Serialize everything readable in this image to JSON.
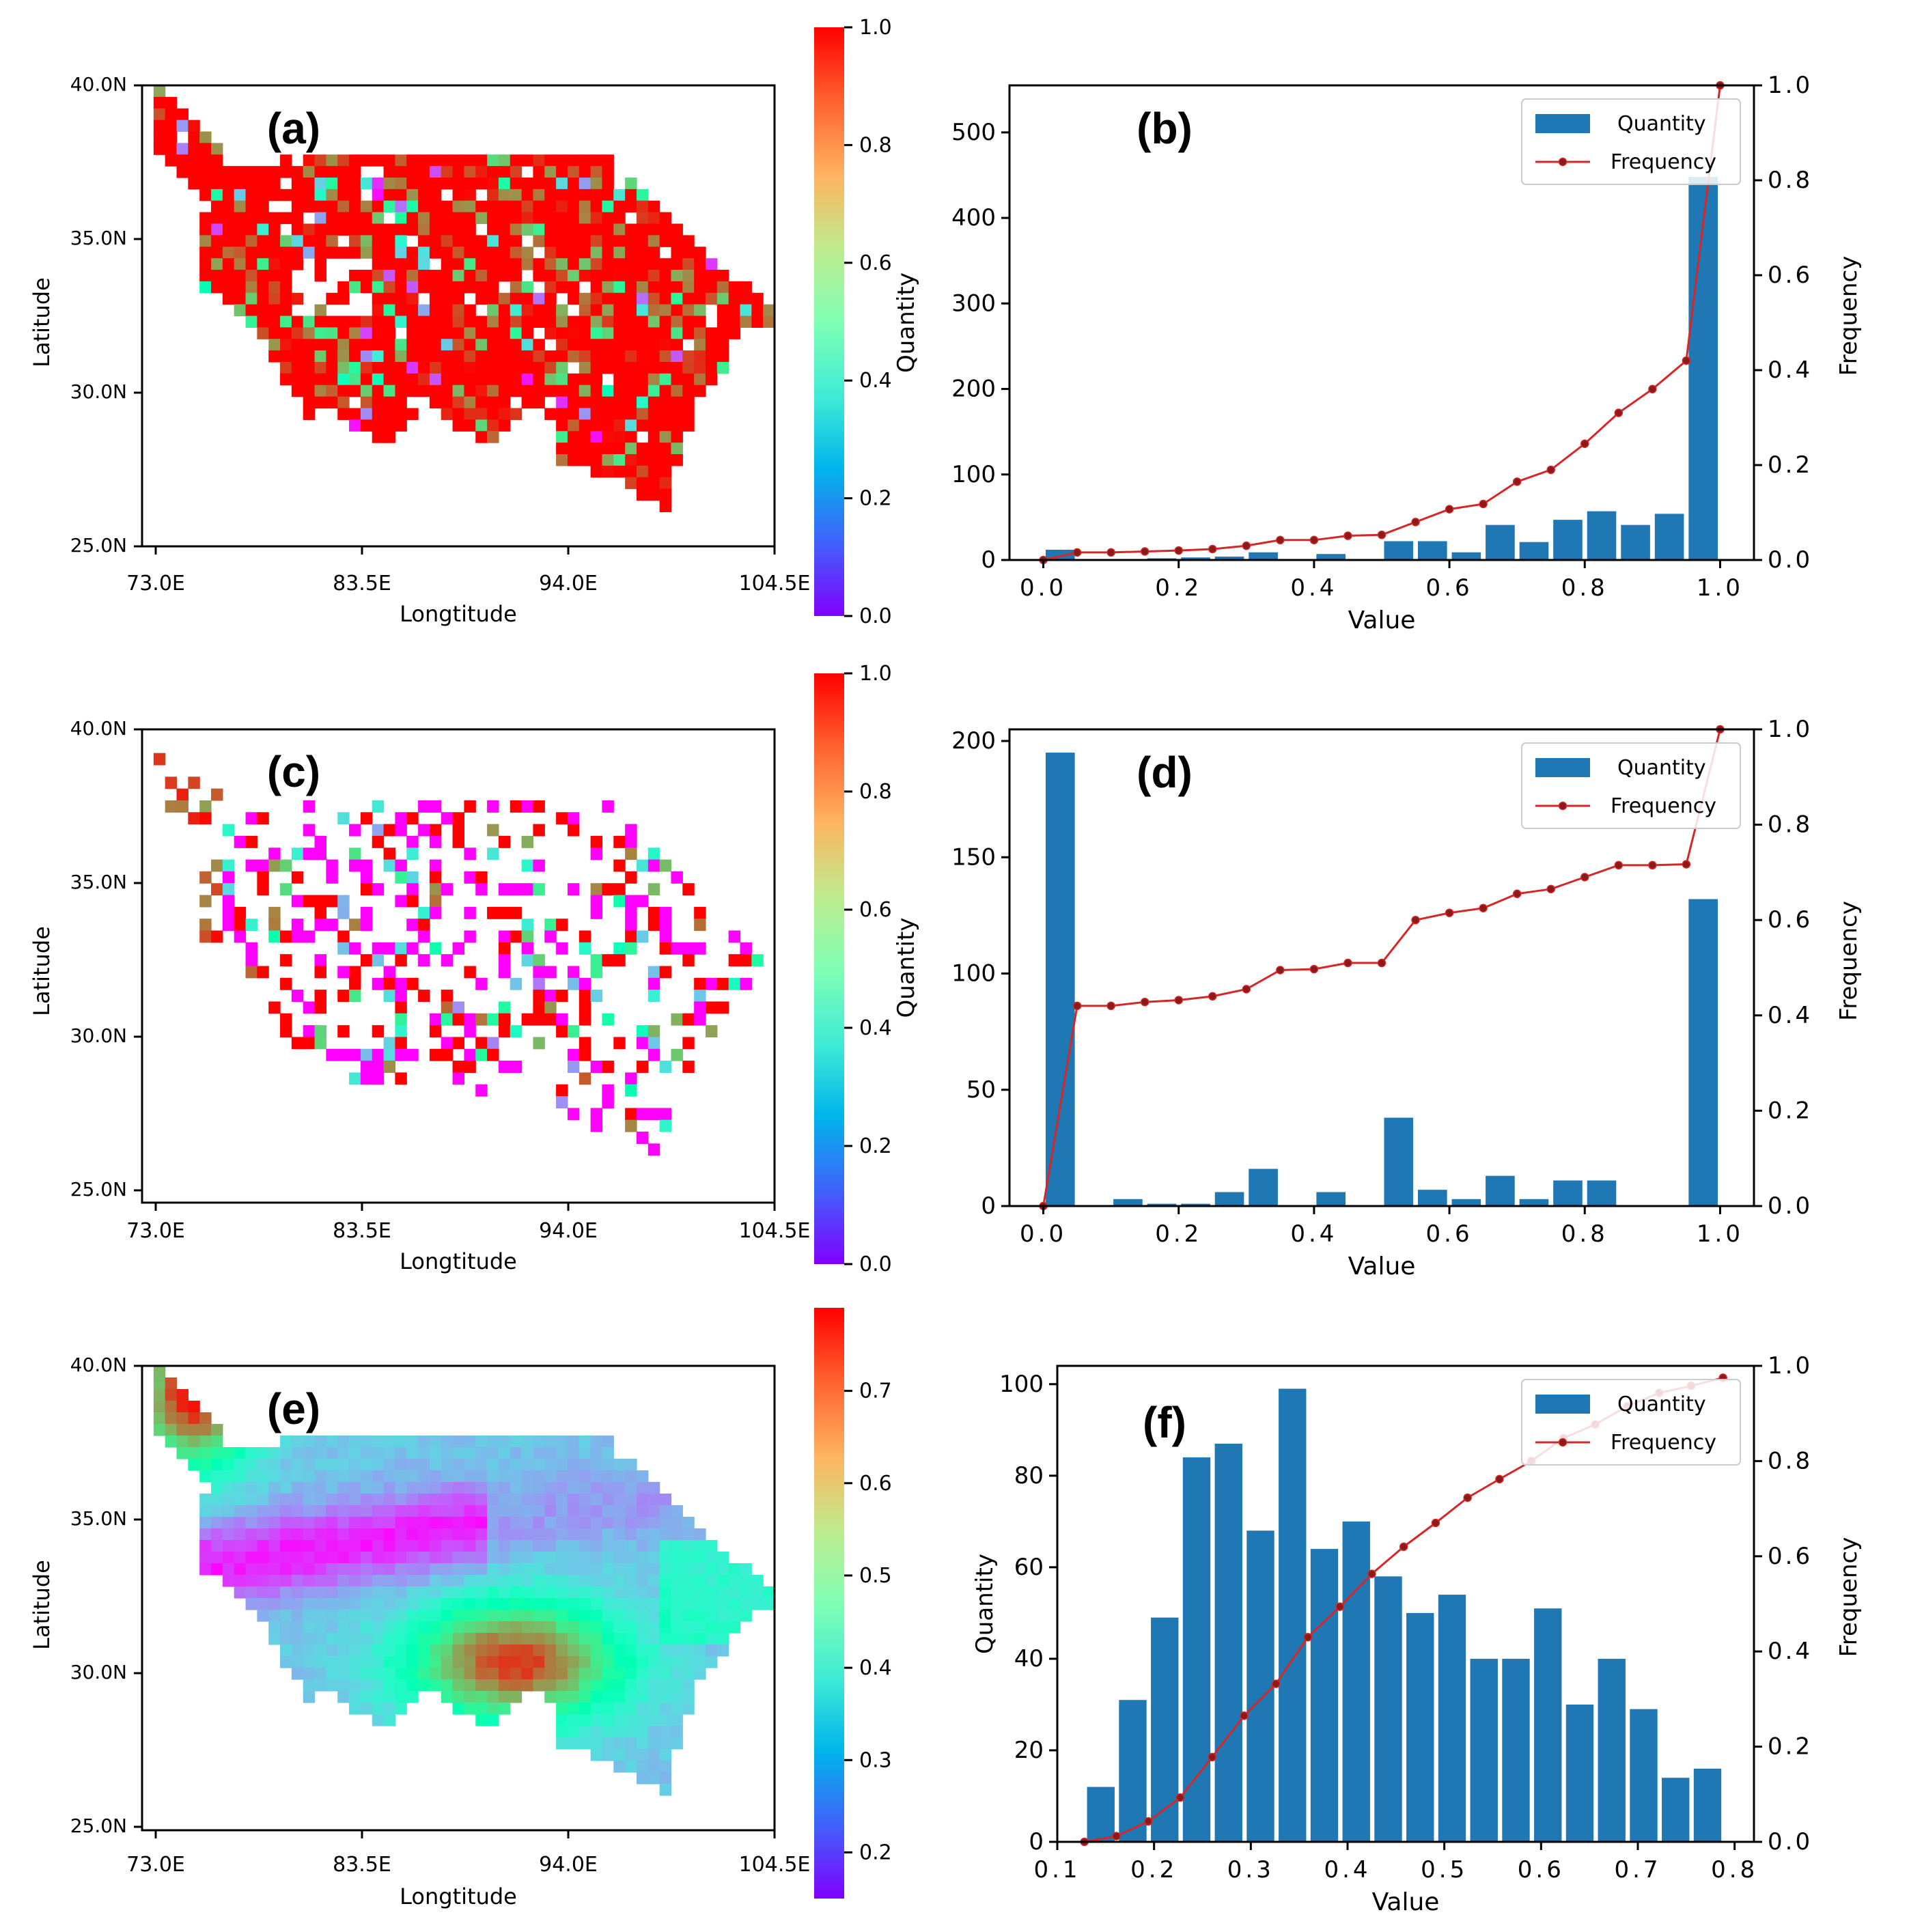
{
  "figure": {
    "map_panels": [
      {
        "id": "a",
        "panel_label": "(a)",
        "xlabel": "Longtitude",
        "ylabel": "Latitude",
        "xticks": [
          "73.0E",
          "83.5E",
          "94.0E",
          "104.5E"
        ],
        "yticks": [
          "40.0N",
          "35.0N",
          "30.0N",
          "25.0N"
        ],
        "colorbar_range": [
          0.0,
          1.0
        ],
        "colorbar_ticks": [
          "0.0",
          "0.2",
          "0.4",
          "0.6",
          "0.8",
          "1.0"
        ],
        "pattern": "mostly_high",
        "palette": "rainbow"
      },
      {
        "id": "c",
        "panel_label": "(c)",
        "xlabel": "Longtitude",
        "ylabel": "Latitude",
        "xticks": [
          "73.0E",
          "83.5E",
          "94.0E",
          "104.5E"
        ],
        "yticks": [
          "40.0N",
          "35.0N",
          "30.0N",
          "25.0N"
        ],
        "colorbar_range": [
          0.0,
          1.0
        ],
        "colorbar_ticks": [
          "0.0",
          "0.2",
          "0.4",
          "0.6",
          "0.8",
          "1.0"
        ],
        "pattern": "sparse_bimodal",
        "palette": "rainbow"
      },
      {
        "id": "e",
        "panel_label": "(e)",
        "xlabel": "Longtitude",
        "ylabel": "Latitude",
        "xticks": [
          "73.0E",
          "83.5E",
          "94.0E",
          "104.5E"
        ],
        "yticks": [
          "40.0N",
          "35.0N",
          "30.0N",
          "25.0N"
        ],
        "colorbar_range": [
          0.15,
          0.79
        ],
        "colorbar_ticks": [
          "0.2",
          "0.3",
          "0.4",
          "0.5",
          "0.6",
          "0.7"
        ],
        "pattern": "smooth_field",
        "palette": "rainbow"
      }
    ]
  },
  "chart_data": [
    {
      "type": "bar",
      "id": "b",
      "panel_label": "(b)",
      "xlabel": "Value",
      "ylabel": "Quantity",
      "y2label": "Frequency",
      "xlim": [
        -0.05,
        1.05
      ],
      "ylim": [
        0,
        555
      ],
      "y2lim": [
        0,
        1.0
      ],
      "xticks": [
        "0.0",
        "0.2",
        "0.4",
        "0.6",
        "0.8",
        "1.0"
      ],
      "yticks": [
        "0",
        "100",
        "200",
        "300",
        "400",
        "500"
      ],
      "y2ticks": [
        "0.0",
        "0.2",
        "0.4",
        "0.6",
        "0.8",
        "1.0"
      ],
      "bar_width": 0.043,
      "x": [
        0.025,
        0.075,
        0.125,
        0.175,
        0.225,
        0.275,
        0.325,
        0.375,
        0.425,
        0.475,
        0.525,
        0.575,
        0.625,
        0.675,
        0.725,
        0.775,
        0.825,
        0.875,
        0.925,
        0.975
      ],
      "series": [
        {
          "name": "Quantity",
          "values": [
            12,
            0,
            1,
            2,
            3,
            4,
            9,
            0,
            7,
            0,
            22,
            22,
            9,
            41,
            21,
            47,
            57,
            41,
            54,
            448
          ]
        },
        {
          "name": "Frequency",
          "x": [
            0.0,
            0.05,
            0.1,
            0.15,
            0.2,
            0.25,
            0.3,
            0.35,
            0.4,
            0.45,
            0.5,
            0.55,
            0.6,
            0.65,
            0.7,
            0.75,
            0.8,
            0.85,
            0.9,
            0.95,
            1.0
          ],
          "values": [
            0.0,
            0.016,
            0.016,
            0.018,
            0.02,
            0.023,
            0.03,
            0.042,
            0.042,
            0.051,
            0.053,
            0.08,
            0.107,
            0.118,
            0.165,
            0.19,
            0.245,
            0.31,
            0.36,
            0.42,
            1.0
          ]
        }
      ],
      "legend": [
        "Quantity",
        "Frequency"
      ],
      "legend_position": "top-right"
    },
    {
      "type": "bar",
      "id": "d",
      "panel_label": "(d)",
      "xlabel": "Value",
      "ylabel": "Quantity",
      "y2label": "Frequency",
      "xlim": [
        -0.05,
        1.05
      ],
      "ylim": [
        0,
        205
      ],
      "y2lim": [
        0,
        1.0
      ],
      "xticks": [
        "0.0",
        "0.2",
        "0.4",
        "0.6",
        "0.8",
        "1.0"
      ],
      "yticks": [
        "0",
        "50",
        "100",
        "150",
        "200"
      ],
      "y2ticks": [
        "0.0",
        "0.2",
        "0.4",
        "0.6",
        "0.8",
        "1.0"
      ],
      "bar_width": 0.043,
      "x": [
        0.025,
        0.075,
        0.125,
        0.175,
        0.225,
        0.275,
        0.325,
        0.375,
        0.425,
        0.475,
        0.525,
        0.575,
        0.625,
        0.675,
        0.725,
        0.775,
        0.825,
        0.875,
        0.925,
        0.975
      ],
      "series": [
        {
          "name": "Quantity",
          "values": [
            195,
            0,
            3,
            1,
            1,
            6,
            16,
            0,
            6,
            0,
            38,
            7,
            3,
            13,
            3,
            11,
            11,
            0,
            0,
            132
          ]
        },
        {
          "name": "Frequency",
          "x": [
            0.0,
            0.05,
            0.1,
            0.15,
            0.2,
            0.25,
            0.3,
            0.35,
            0.4,
            0.45,
            0.5,
            0.55,
            0.6,
            0.65,
            0.7,
            0.75,
            0.8,
            0.85,
            0.9,
            0.95,
            1.0
          ],
          "values": [
            0.0,
            0.42,
            0.42,
            0.428,
            0.432,
            0.44,
            0.455,
            0.495,
            0.497,
            0.51,
            0.51,
            0.6,
            0.615,
            0.625,
            0.655,
            0.665,
            0.69,
            0.715,
            0.715,
            0.717,
            1.0
          ]
        }
      ],
      "legend": [
        "Quantity",
        "Frequency"
      ],
      "legend_position": "top-right"
    },
    {
      "type": "bar",
      "id": "f",
      "panel_label": "(f)",
      "xlabel": "Value",
      "ylabel": "Quantity",
      "y2label": "Frequency",
      "xlim": [
        0.1,
        0.82
      ],
      "ylim": [
        0,
        104
      ],
      "y2lim": [
        0,
        1.0
      ],
      "xticks": [
        "0.1",
        "0.2",
        "0.3",
        "0.4",
        "0.5",
        "0.6",
        "0.7",
        "0.8"
      ],
      "yticks": [
        "0",
        "20",
        "40",
        "60",
        "80",
        "100"
      ],
      "y2ticks": [
        "0.0",
        "0.2",
        "0.4",
        "0.6",
        "0.8",
        "1.0"
      ],
      "bar_width": 0.0285,
      "x": [
        0.145,
        0.178,
        0.211,
        0.244,
        0.277,
        0.31,
        0.343,
        0.376,
        0.409,
        0.442,
        0.475,
        0.508,
        0.541,
        0.574,
        0.607,
        0.64,
        0.673,
        0.706,
        0.739,
        0.772
      ],
      "series": [
        {
          "name": "Quantity",
          "values": [
            12,
            31,
            49,
            84,
            87,
            68,
            99,
            64,
            70,
            58,
            50,
            54,
            40,
            40,
            51,
            30,
            40,
            29,
            14,
            16
          ]
        },
        {
          "name": "Frequency",
          "x": [
            0.128,
            0.161,
            0.194,
            0.227,
            0.26,
            0.293,
            0.326,
            0.359,
            0.392,
            0.425,
            0.458,
            0.491,
            0.524,
            0.557,
            0.59,
            0.623,
            0.656,
            0.689,
            0.722,
            0.755,
            0.788
          ],
          "values": [
            0.0,
            0.012,
            0.043,
            0.093,
            0.178,
            0.265,
            0.332,
            0.43,
            0.494,
            0.563,
            0.62,
            0.67,
            0.723,
            0.762,
            0.8,
            0.848,
            0.877,
            0.915,
            0.943,
            0.958,
            0.975
          ]
        }
      ],
      "legend": [
        "Quantity",
        "Frequency"
      ],
      "legend_position": "top-right"
    }
  ],
  "colors": {
    "bar": "#1f77b4",
    "line": "#d62728",
    "marker": "#8b1a1a",
    "axis": "#000000"
  }
}
